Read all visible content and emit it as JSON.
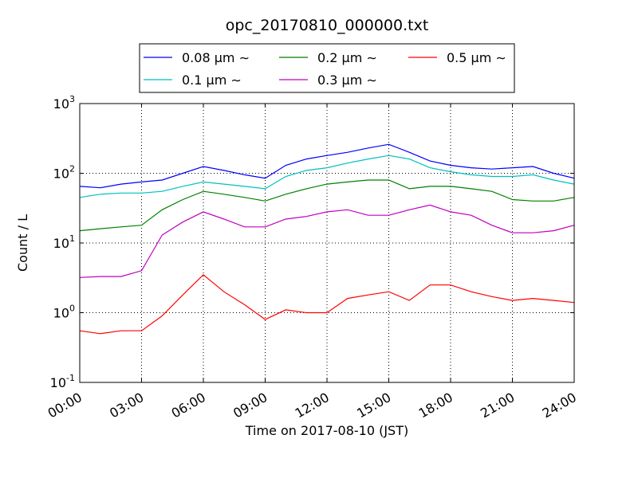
{
  "chart_data": {
    "type": "line",
    "title": "opc_20170810_000000.txt",
    "xlabel": "Time on 2017-08-10 (JST)",
    "ylabel": "Count / L",
    "log_y": true,
    "grid": true,
    "legend": "top",
    "x": [
      0,
      1,
      2,
      3,
      4,
      5,
      6,
      7,
      8,
      9,
      10,
      11,
      12,
      13,
      14,
      15,
      16,
      17,
      18,
      19,
      20,
      21,
      22,
      23,
      24
    ],
    "xlim": [
      0,
      24
    ],
    "xticks": [
      {
        "value": 0,
        "label": "00:00"
      },
      {
        "value": 3,
        "label": "03:00"
      },
      {
        "value": 6,
        "label": "06:00"
      },
      {
        "value": 9,
        "label": "09:00"
      },
      {
        "value": 12,
        "label": "12:00"
      },
      {
        "value": 15,
        "label": "15:00"
      },
      {
        "value": 18,
        "label": "18:00"
      },
      {
        "value": 21,
        "label": "21:00"
      },
      {
        "value": 24,
        "label": "24:00"
      }
    ],
    "ylim": [
      0.1,
      1000
    ],
    "yticks": [
      {
        "value": 0.1,
        "label": "10",
        "exponent": "-1"
      },
      {
        "value": 1,
        "label": "10",
        "exponent": "0"
      },
      {
        "value": 10,
        "label": "10",
        "exponent": "1"
      },
      {
        "value": 100,
        "label": "10",
        "exponent": "2"
      },
      {
        "value": 1000,
        "label": "10",
        "exponent": "3"
      }
    ],
    "series": [
      {
        "name": "0.08 μm ∼",
        "color": "#0000ff",
        "values": [
          65,
          62,
          70,
          75,
          80,
          100,
          125,
          110,
          95,
          85,
          130,
          160,
          180,
          200,
          230,
          260,
          200,
          150,
          130,
          120,
          115,
          120,
          125,
          100,
          85
        ]
      },
      {
        "name": "0.1 μm ∼",
        "color": "#00bfbf",
        "values": [
          45,
          50,
          52,
          52,
          55,
          65,
          75,
          70,
          65,
          60,
          90,
          110,
          120,
          140,
          160,
          180,
          160,
          120,
          105,
          95,
          90,
          90,
          95,
          80,
          70
        ]
      },
      {
        "name": "0.2 μm ∼",
        "color": "#008000",
        "values": [
          15,
          16,
          17,
          18,
          30,
          42,
          55,
          50,
          45,
          40,
          50,
          60,
          70,
          75,
          80,
          80,
          60,
          65,
          65,
          60,
          55,
          42,
          40,
          40,
          45
        ]
      },
      {
        "name": "0.3 μm ∼",
        "color": "#bf00bf",
        "values": [
          3.2,
          3.3,
          3.3,
          4,
          13,
          20,
          28,
          22,
          17,
          17,
          22,
          24,
          28,
          30,
          25,
          25,
          30,
          35,
          28,
          25,
          18,
          14,
          14,
          15,
          18
        ]
      },
      {
        "name": "0.5 μm ∼",
        "color": "#ff0000",
        "values": [
          0.55,
          0.5,
          0.55,
          0.55,
          0.9,
          1.8,
          3.5,
          2,
          1.3,
          0.8,
          1.1,
          1.0,
          1.0,
          1.6,
          1.8,
          2.0,
          1.5,
          2.5,
          2.5,
          2.0,
          1.7,
          1.5,
          1.6,
          1.5,
          1.4
        ]
      }
    ]
  }
}
